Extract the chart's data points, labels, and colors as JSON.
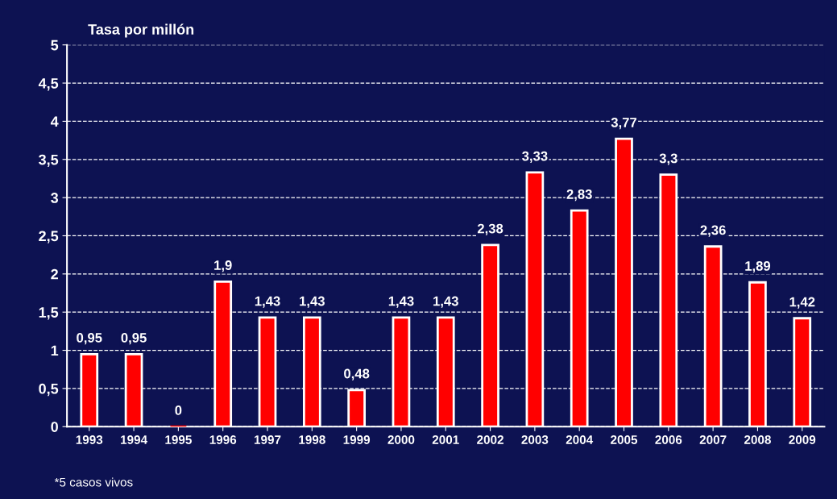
{
  "chart_data": {
    "type": "bar",
    "ylabel": "Tasa por millón",
    "categories": [
      "1993",
      "1994",
      "1995",
      "1996",
      "1997",
      "1998",
      "1999",
      "2000",
      "2001",
      "2002",
      "2003",
      "2004",
      "2005",
      "2006",
      "2007",
      "2008",
      "2009"
    ],
    "values": [
      0.95,
      0.95,
      0,
      1.9,
      1.43,
      1.43,
      0.48,
      1.43,
      1.43,
      2.38,
      3.33,
      2.83,
      3.77,
      3.3,
      2.36,
      1.89,
      1.42
    ],
    "value_labels": [
      "0,95",
      "0,95",
      "0",
      "1,9",
      "1,43",
      "1,43",
      "0,48",
      "1,43",
      "1,43",
      "2,38",
      "3,33",
      "2,83",
      "3,77",
      "3,3",
      "2,36",
      "1,89",
      "1,42"
    ],
    "color": "#ff0000",
    "ylim": [
      0,
      5
    ],
    "yticks": [
      0,
      {
        "value": 0.5,
        "label": "0,5"
      },
      1,
      {
        "value": 1.5,
        "label": "1,5"
      },
      2,
      {
        "value": 2.5,
        "label": "2,5"
      },
      3,
      {
        "value": 3.5,
        "label": "3,5"
      },
      4,
      {
        "value": 4.5,
        "label": "4,5"
      },
      5
    ],
    "grid": "y",
    "legend": false,
    "annotations": [
      "*5 casos vivos"
    ]
  }
}
